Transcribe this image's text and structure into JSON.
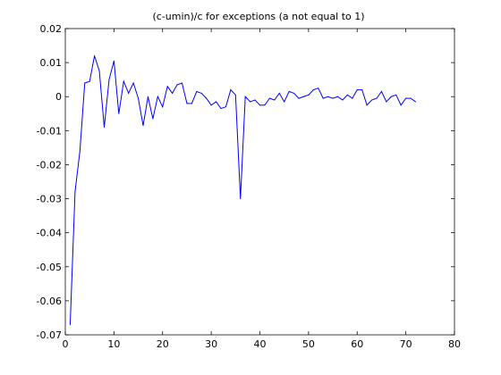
{
  "chart_data": {
    "type": "line",
    "title": "(c-umin)/c for exceptions (a not equal to 1)",
    "xlabel": "",
    "ylabel": "",
    "xlim": [
      0,
      80
    ],
    "ylim": [
      -0.07,
      0.02
    ],
    "x_ticks": [
      "0",
      "10",
      "20",
      "30",
      "40",
      "50",
      "60",
      "70",
      "80"
    ],
    "y_ticks": [
      "0.02",
      "0.01",
      "0",
      "-0.01",
      "-0.02",
      "-0.03",
      "-0.04",
      "-0.05",
      "-0.06",
      "-0.07"
    ],
    "grid": false,
    "line_color": "#0000ff",
    "series": [
      {
        "x": [
          1,
          2,
          3,
          4,
          5,
          6,
          7,
          8,
          9,
          10,
          11,
          12,
          13,
          14,
          15,
          16,
          17,
          18,
          19,
          20,
          21,
          22,
          23,
          24,
          25,
          26,
          27,
          28,
          29,
          30,
          31,
          32,
          33,
          34,
          35,
          36,
          37,
          38,
          39,
          40,
          41,
          42,
          43,
          44,
          45,
          46,
          47,
          48,
          49,
          50,
          51,
          52,
          53,
          54,
          55,
          56,
          57,
          58,
          59,
          60,
          61,
          62,
          63,
          64,
          65,
          66,
          67,
          68,
          69,
          70,
          71,
          72
        ],
        "values": [
          -0.067,
          -0.028,
          -0.016,
          0.004,
          0.0045,
          0.012,
          0.0075,
          -0.009,
          0.005,
          0.0105,
          -0.005,
          0.0045,
          0.001,
          0.004,
          -0.0005,
          -0.0085,
          0.0,
          -0.0065,
          0.0,
          -0.003,
          0.003,
          0.001,
          0.0035,
          0.004,
          -0.002,
          -0.002,
          0.0015,
          0.001,
          -0.0005,
          -0.0025,
          -0.0015,
          -0.0035,
          -0.003,
          0.002,
          0.0005,
          -0.03,
          0.0,
          -0.0015,
          -0.001,
          -0.0025,
          -0.0025,
          -0.0005,
          -0.001,
          0.001,
          -0.0015,
          0.0015,
          0.001,
          -0.0005,
          0.0,
          0.0005,
          0.002,
          0.0025,
          -0.0005,
          0.0,
          -0.0005,
          0.0,
          -0.001,
          0.0005,
          -0.0005,
          0.002,
          0.002,
          -0.0025,
          -0.001,
          -0.0005,
          0.0015,
          -0.0015,
          0.0,
          0.0005,
          -0.0025,
          -0.0005,
          -0.0005,
          -0.0015
        ]
      }
    ]
  }
}
